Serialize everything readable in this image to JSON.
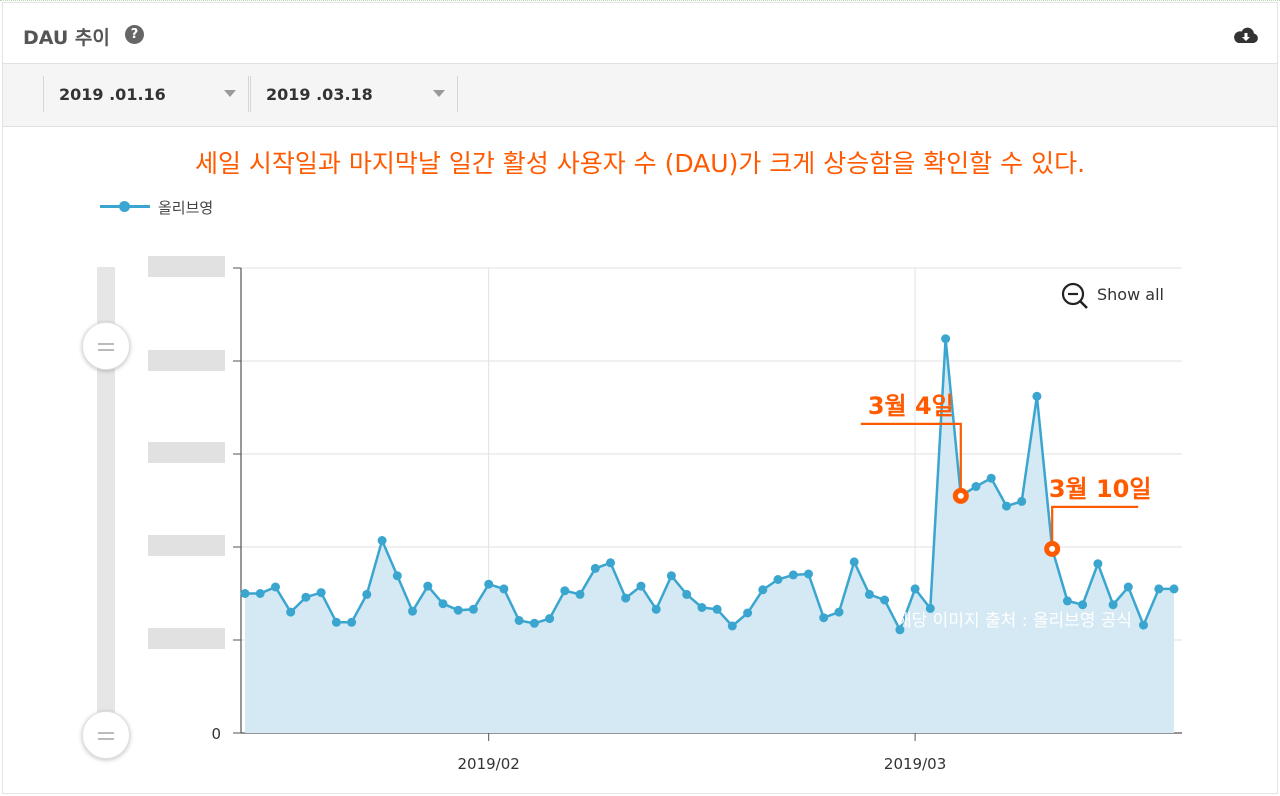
{
  "header": {
    "title": "DAU 추이",
    "help_icon": "question-circle-icon",
    "download_icon": "cloud-download-icon"
  },
  "toolbar": {
    "start_date": "2019 .01.16",
    "end_date": "2019 .03.18"
  },
  "headline": "세일 시작일과 마지막날 일간 활성 사용자 수 (DAU)가 크게 상승함을 확인할 수 있다.",
  "legend": {
    "series_name": "올리브영",
    "color": "#3aa6d0"
  },
  "show_all": {
    "label": "Show all",
    "icon": "zoom-out-icon"
  },
  "watermark": "해당 이미지 출처 : 올리브영 공식",
  "colors": {
    "accent": "#ff5a00",
    "series": "#3aa6d0",
    "area": "#d4e9f3"
  },
  "chart_data": {
    "type": "area",
    "title": "",
    "xlabel": "",
    "ylabel": "",
    "x_ticks": [
      "2019/02",
      "2019/03"
    ],
    "y_ticks": [
      "0"
    ],
    "y_tick_labels_redacted": true,
    "grid": true,
    "legend_position": "top-left",
    "ylim": [
      0,
      5
    ],
    "series": [
      {
        "name": "올리브영",
        "dates": [
          "2019-01-16",
          "2019-01-17",
          "2019-01-18",
          "2019-01-19",
          "2019-01-20",
          "2019-01-21",
          "2019-01-22",
          "2019-01-23",
          "2019-01-24",
          "2019-01-25",
          "2019-01-26",
          "2019-01-27",
          "2019-01-28",
          "2019-01-29",
          "2019-01-30",
          "2019-01-31",
          "2019-02-01",
          "2019-02-02",
          "2019-02-03",
          "2019-02-04",
          "2019-02-05",
          "2019-02-06",
          "2019-02-07",
          "2019-02-08",
          "2019-02-09",
          "2019-02-10",
          "2019-02-11",
          "2019-02-12",
          "2019-02-13",
          "2019-02-14",
          "2019-02-15",
          "2019-02-16",
          "2019-02-17",
          "2019-02-18",
          "2019-02-19",
          "2019-02-20",
          "2019-02-21",
          "2019-02-22",
          "2019-02-23",
          "2019-02-24",
          "2019-02-25",
          "2019-02-26",
          "2019-02-27",
          "2019-02-28",
          "2019-03-01",
          "2019-03-02",
          "2019-03-03",
          "2019-03-04",
          "2019-03-05",
          "2019-03-06",
          "2019-03-07",
          "2019-03-08",
          "2019-03-09",
          "2019-03-10",
          "2019-03-11",
          "2019-03-12",
          "2019-03-13",
          "2019-03-14",
          "2019-03-15",
          "2019-03-16",
          "2019-03-17",
          "2019-03-18"
        ],
        "values": [
          1.5,
          1.5,
          1.57,
          1.3,
          1.46,
          1.51,
          1.19,
          1.19,
          1.49,
          2.07,
          1.69,
          1.31,
          1.58,
          1.39,
          1.32,
          1.33,
          1.6,
          1.55,
          1.21,
          1.18,
          1.23,
          1.53,
          1.49,
          1.77,
          1.83,
          1.45,
          1.58,
          1.33,
          1.69,
          1.49,
          1.35,
          1.33,
          1.15,
          1.29,
          1.54,
          1.65,
          1.7,
          1.71,
          1.24,
          1.3,
          1.84,
          1.49,
          1.43,
          1.11,
          1.55,
          1.34,
          4.24,
          2.55,
          2.65,
          2.74,
          2.44,
          2.49,
          3.62,
          1.98,
          1.42,
          1.38,
          1.82,
          1.38,
          1.57,
          1.16,
          1.55,
          1.55
        ]
      }
    ],
    "annotations": [
      {
        "date": "2019-03-04",
        "label": "3월 4일"
      },
      {
        "date": "2019-03-10",
        "label": "3월 10일"
      }
    ]
  }
}
